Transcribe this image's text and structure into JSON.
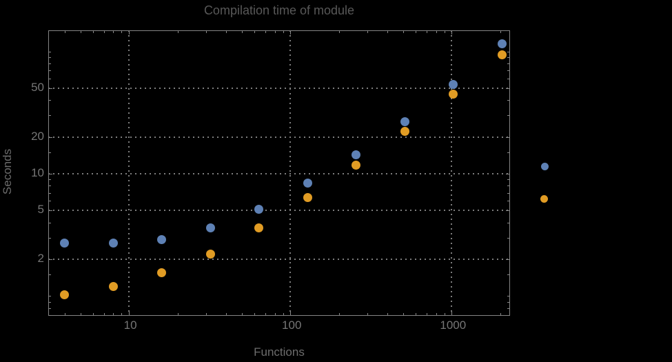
{
  "title": "Compilation time of module",
  "colors": {
    "background": "#000000",
    "frame": "#858585",
    "gridline": "#7e7e7e",
    "title_text": "#585858",
    "tick_label_text": "#767676",
    "axis_label_text": "#6d6d6d",
    "series_blue": "#5e81b5",
    "series_orange": "#e19c24"
  },
  "chart_data": {
    "type": "scatter",
    "title": "Compilation time of module",
    "xlabel": "Functions",
    "ylabel": "Seconds",
    "x_scale": "log",
    "y_scale": "log",
    "xlim": [
      3.16,
      2300
    ],
    "ylim": [
      0.69,
      149
    ],
    "grid": "dotted, at labeled major ticks only",
    "x": [
      4,
      8,
      16,
      32,
      64,
      128,
      256,
      512,
      1024,
      2048
    ],
    "series": [
      {
        "name": "series-blue",
        "color": "#5e81b5",
        "values": [
          2.7,
          2.7,
          2.9,
          3.6,
          5.1,
          8.4,
          14.3,
          26.7,
          54,
          115
        ]
      },
      {
        "name": "series-orange",
        "color": "#e19c24",
        "values": [
          1.03,
          1.2,
          1.55,
          2.2,
          3.6,
          6.4,
          11.8,
          22.2,
          45,
          94
        ]
      }
    ],
    "x_ticks": {
      "major": [
        10,
        100,
        1000
      ],
      "labels": [
        "10",
        "100",
        "1000"
      ],
      "minor": [
        4,
        5,
        6,
        7,
        8,
        9,
        20,
        30,
        40,
        50,
        60,
        70,
        80,
        90,
        200,
        300,
        400,
        500,
        600,
        700,
        800,
        900,
        2000
      ]
    },
    "y_ticks": {
      "major": [
        2,
        5,
        10,
        20,
        50
      ],
      "labels": [
        "2",
        "5",
        "10",
        "20",
        "50"
      ],
      "minor": [
        0.7,
        0.8,
        0.9,
        1,
        1.5,
        3,
        4,
        6,
        7,
        8,
        9,
        15,
        30,
        40,
        60,
        70,
        80,
        90,
        100
      ]
    },
    "gridlines": {
      "x": [
        10,
        100,
        1000
      ],
      "y": [
        2,
        5,
        10,
        20,
        50
      ]
    },
    "legend": {
      "position": "outside-right",
      "entries": [
        {
          "marker": "disk",
          "color": "#5e81b5",
          "label": ""
        },
        {
          "marker": "disk",
          "color": "#e19c24",
          "label": ""
        }
      ]
    }
  }
}
